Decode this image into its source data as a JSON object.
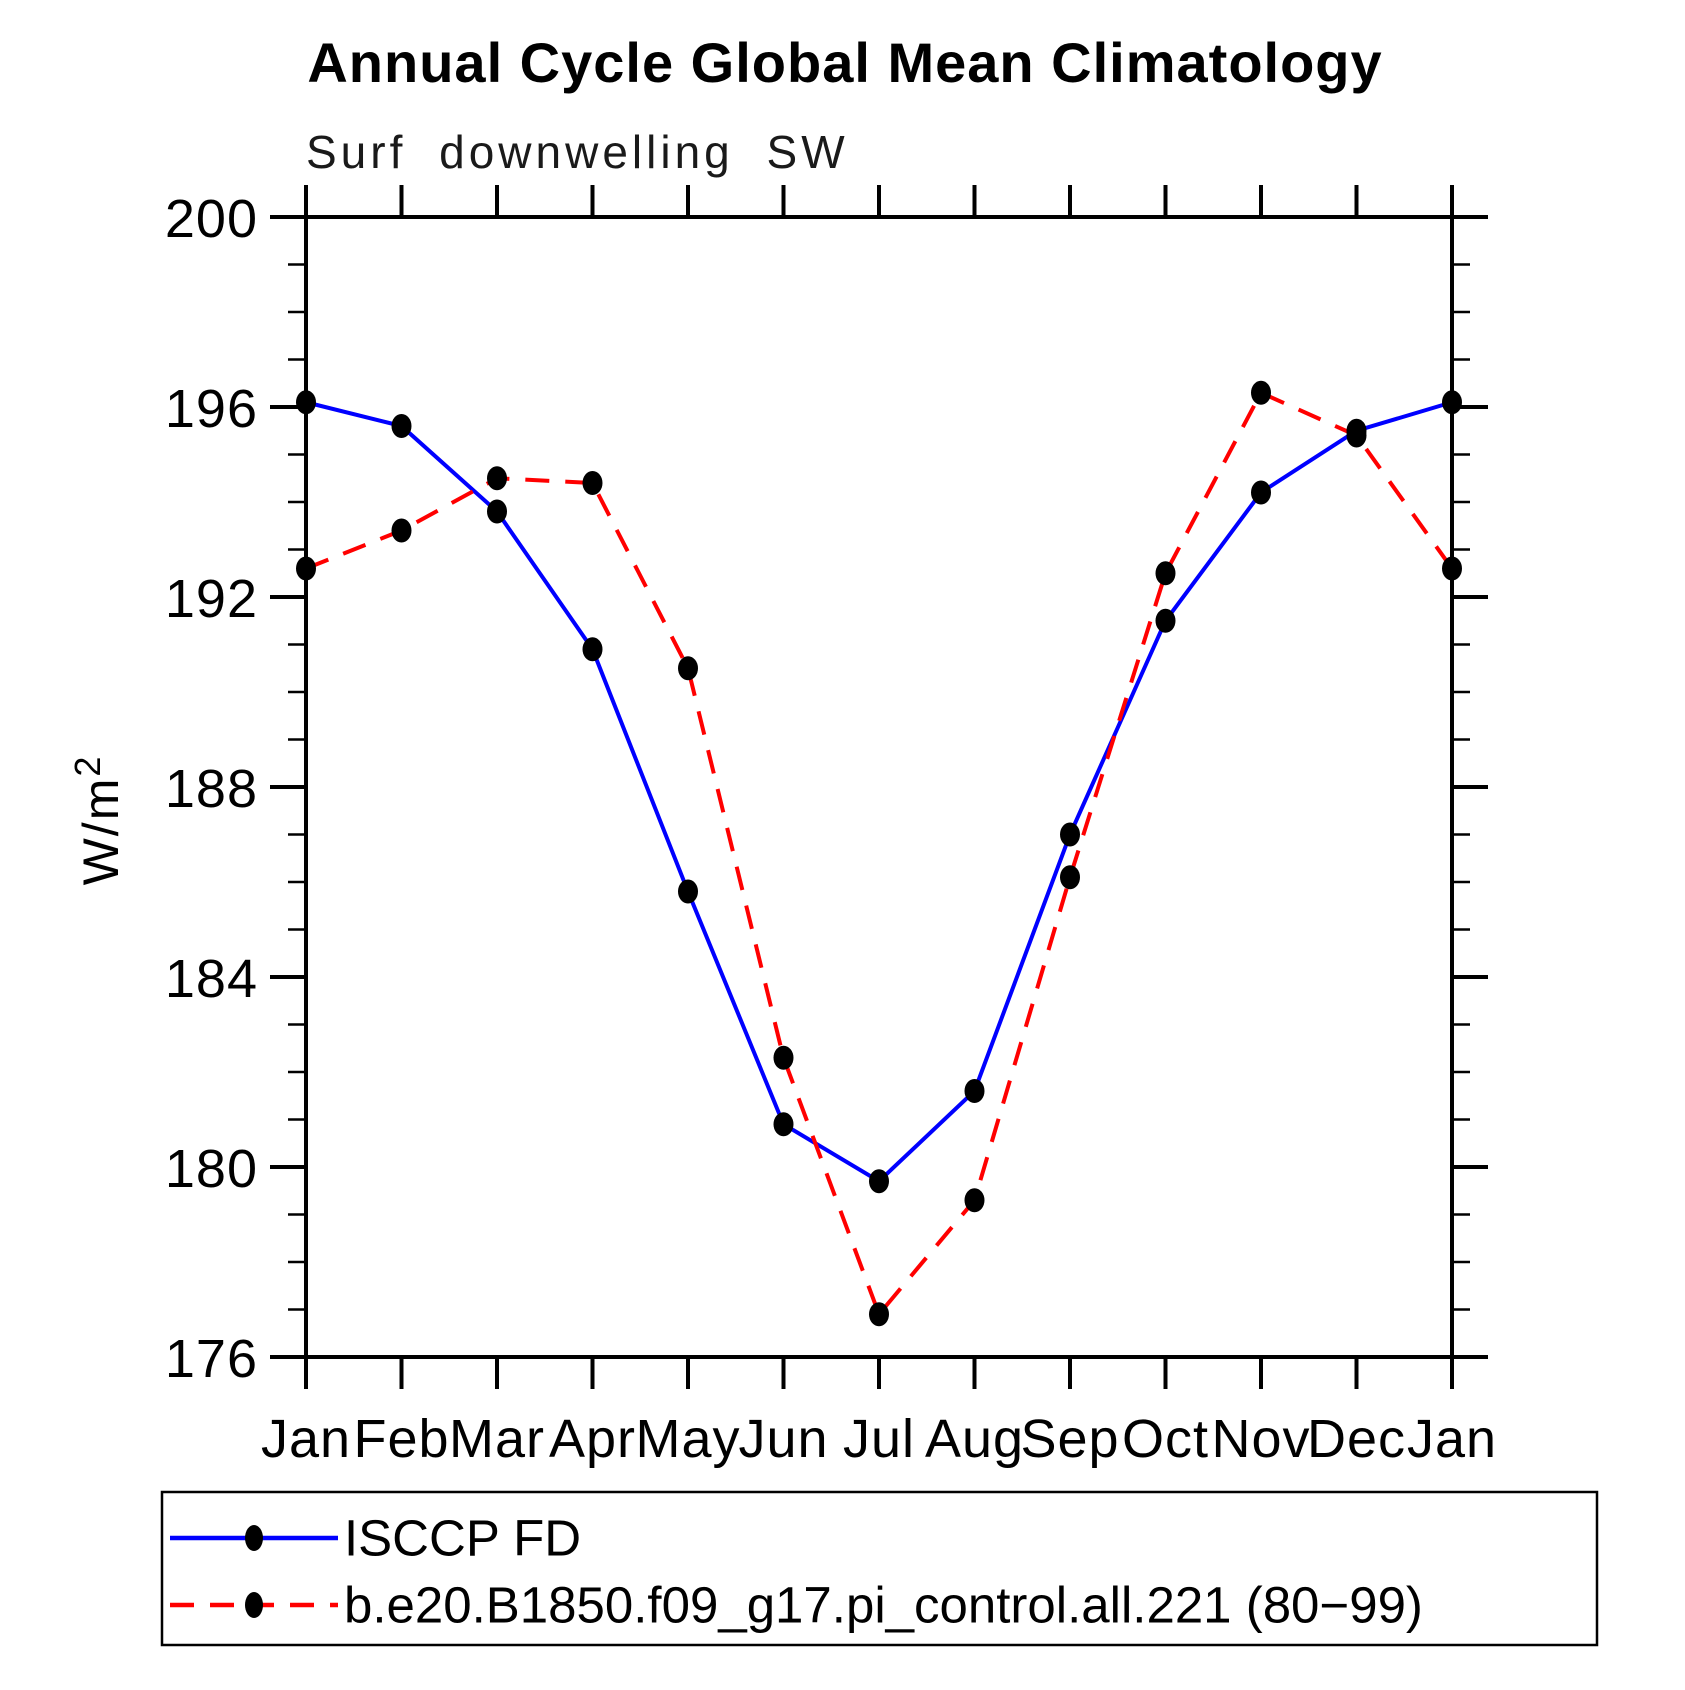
{
  "chart_data": {
    "type": "line",
    "title": "Annual Cycle Global Mean Climatology",
    "subtitle": "Surf downwelling SW",
    "xlabel": "",
    "ylabel": "W/m²",
    "ylim": [
      176,
      200
    ],
    "ytick_major": [
      176,
      180,
      184,
      188,
      192,
      196,
      200
    ],
    "ytick_minor_step": 1,
    "grid": "off",
    "legend_position": "bottom",
    "categories": [
      "Jan",
      "Feb",
      "Mar",
      "Apr",
      "May",
      "Jun",
      "Jul",
      "Aug",
      "Sep",
      "Oct",
      "Nov",
      "Dec",
      "Jan"
    ],
    "series": [
      {
        "name": "ISCCP FD",
        "color": "#0000ff",
        "line_style": "solid",
        "marker": "circle",
        "marker_color": "#000000",
        "values": [
          196.1,
          195.6,
          193.8,
          190.9,
          185.8,
          180.9,
          179.7,
          181.6,
          187.0,
          191.5,
          194.2,
          195.5,
          196.1
        ]
      },
      {
        "name": "b.e20.B1850.f09_g17.pi_control.all.221 (80−99)",
        "color": "#ff0000",
        "line_style": "dashed",
        "marker": "circle",
        "marker_color": "#000000",
        "values": [
          192.6,
          193.4,
          194.5,
          194.4,
          190.5,
          182.3,
          176.9,
          179.3,
          186.1,
          192.5,
          196.3,
          195.4,
          192.6
        ]
      }
    ]
  },
  "y_axis": {
    "label_base": "W/m",
    "label_sup": "2"
  },
  "colors": {
    "isccp_line": "#0000ff",
    "model_line": "#ff0000",
    "marker": "#000000",
    "axis": "#000000",
    "background": "#ffffff"
  }
}
